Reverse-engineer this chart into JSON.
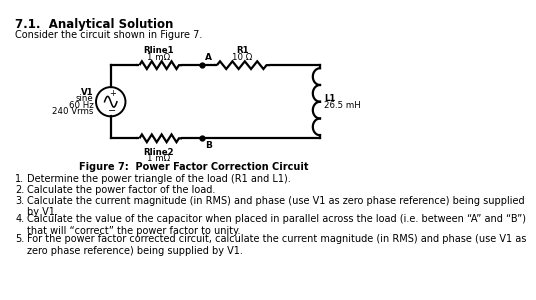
{
  "title": "7.1.  Analytical Solution",
  "subtitle": "Consider the circuit shown in Figure 7.",
  "figure_caption": "Figure 7:  Power Factor Correction Circuit",
  "bg_color": "#ffffff",
  "text_color": "#000000",
  "rline1_label": "Rline1",
  "rline1_val": "1 mΩ",
  "rline2_label": "Rline2",
  "rline2_val": "1 mΩ",
  "r1_label": "R1",
  "r1_val": "10 Ω",
  "l1_label": "L1",
  "l1_val": "26.5 mH",
  "v1_label": "V1",
  "v1_line2": "sine",
  "v1_line3": "60 Hz",
  "v1_line4": "240 Vrms",
  "node_a": "A",
  "node_b": "B",
  "items": [
    [
      "1.",
      "Determine the power triangle of the load (R1 and L1)."
    ],
    [
      "2.",
      "Calculate the power factor of the load."
    ],
    [
      "3.",
      "Calculate the current magnitude (in RMS) and phase (use V1 as zero phase reference) being supplied\nby V1."
    ],
    [
      "4.",
      "Calculate the value of the capacitor when placed in parallel across the load (i.e. between “A” and “B”)\nthat will “correct” the power factor to unity."
    ],
    [
      "5.",
      "For the power factor corrected circuit, calculate the current magnitude (in RMS) and phase (use V1 as\nzero phase reference) being supplied by V1."
    ]
  ]
}
